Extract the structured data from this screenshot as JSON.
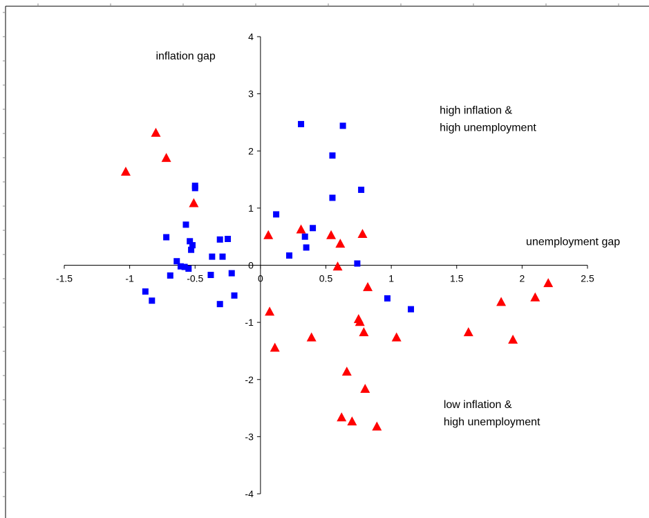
{
  "chart_data": {
    "type": "scatter",
    "title": "",
    "xlabel": "unemployment gap",
    "ylabel": "inflation gap",
    "xlim": [
      -1.5,
      2.5
    ],
    "ylim": [
      -4,
      4
    ],
    "x_ticks": [
      "-1.5",
      "-1",
      "-0.5",
      "0",
      "0.5",
      "1",
      "1.5",
      "2",
      "2.5"
    ],
    "y_ticks": [
      "4",
      "3",
      "2",
      "1",
      "0",
      "-1",
      "-2",
      "-3",
      "-4"
    ],
    "grid": false,
    "legend": "none",
    "annotations": [
      {
        "lines": [
          "high inflation &",
          "high unemployment"
        ],
        "x": 1.37,
        "y": 2.65
      },
      {
        "lines": [
          "low inflation &",
          "high unemployment"
        ],
        "x": 1.4,
        "y": -2.5
      }
    ],
    "series": [
      {
        "marker": "square",
        "color": "#0000ff",
        "points": [
          [
            0.31,
            2.47
          ],
          [
            0.63,
            2.44
          ],
          [
            0.55,
            1.92
          ],
          [
            0.77,
            1.32
          ],
          [
            0.55,
            1.18
          ],
          [
            0.12,
            0.89
          ],
          [
            -0.5,
            1.39
          ],
          [
            -0.5,
            1.35
          ],
          [
            -0.57,
            0.71
          ],
          [
            0.4,
            0.65
          ],
          [
            0.34,
            0.5
          ],
          [
            -0.72,
            0.49
          ],
          [
            -0.25,
            0.46
          ],
          [
            -0.31,
            0.45
          ],
          [
            -0.54,
            0.42
          ],
          [
            -0.52,
            0.35
          ],
          [
            0.35,
            0.31
          ],
          [
            -0.53,
            0.27
          ],
          [
            0.22,
            0.17
          ],
          [
            -0.37,
            0.15
          ],
          [
            -0.29,
            0.15
          ],
          [
            -0.64,
            0.07
          ],
          [
            0.74,
            0.03
          ],
          [
            -0.61,
            -0.02
          ],
          [
            -0.58,
            -0.03
          ],
          [
            -0.55,
            -0.06
          ],
          [
            -0.22,
            -0.14
          ],
          [
            -0.38,
            -0.17
          ],
          [
            -0.69,
            -0.18
          ],
          [
            -0.88,
            -0.46
          ],
          [
            -0.83,
            -0.62
          ],
          [
            -0.2,
            -0.53
          ],
          [
            -0.31,
            -0.68
          ],
          [
            0.97,
            -0.58
          ],
          [
            1.15,
            -0.77
          ]
        ]
      },
      {
        "marker": "triangle",
        "color": "#ff0000",
        "points": [
          [
            -0.8,
            2.32
          ],
          [
            -0.72,
            1.88
          ],
          [
            -1.03,
            1.64
          ],
          [
            -0.51,
            1.09
          ],
          [
            0.31,
            0.63
          ],
          [
            0.06,
            0.53
          ],
          [
            0.54,
            0.53
          ],
          [
            0.78,
            0.55
          ],
          [
            0.61,
            0.38
          ],
          [
            0.59,
            -0.02
          ],
          [
            2.2,
            -0.31
          ],
          [
            0.82,
            -0.38
          ],
          [
            1.84,
            -0.64
          ],
          [
            2.1,
            -0.56
          ],
          [
            0.07,
            -0.81
          ],
          [
            0.75,
            -0.94
          ],
          [
            0.76,
            -0.99
          ],
          [
            0.79,
            -1.17
          ],
          [
            1.59,
            -1.17
          ],
          [
            0.39,
            -1.26
          ],
          [
            1.04,
            -1.26
          ],
          [
            1.93,
            -1.3
          ],
          [
            0.11,
            -1.44
          ],
          [
            0.66,
            -1.86
          ],
          [
            0.8,
            -2.16
          ],
          [
            0.62,
            -2.66
          ],
          [
            0.7,
            -2.73
          ],
          [
            0.89,
            -2.82
          ]
        ]
      }
    ]
  }
}
